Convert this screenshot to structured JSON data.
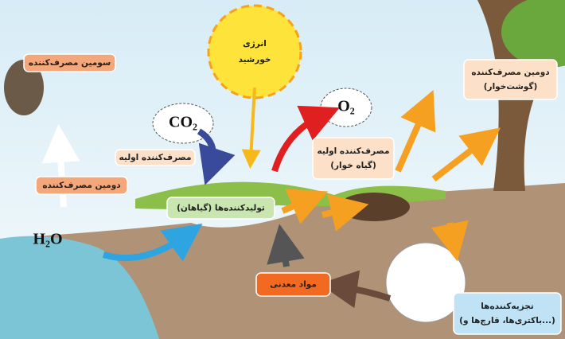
{
  "sun": {
    "lines": [
      "انرژی",
      "خورشید"
    ]
  },
  "molecules": [
    "CO₂",
    "O₂",
    "H₂O"
  ],
  "boxes": [
    {
      "lines": [
        "سومین مصرف‌کننده"
      ]
    },
    {
      "lines": [
        "مصرف‌کننده اولیه"
      ]
    },
    {
      "lines": [
        "دومین مصرف‌کننده"
      ]
    },
    {
      "lines": [
        "تولیدکننده‌ها (گیاهان)"
      ]
    },
    {
      "lines": [
        "مصرف‌کننده اولیه",
        "(گیاه خوار)"
      ]
    },
    {
      "lines": [
        "دومین مصرف‌کننده",
        "(گوشت‌خوار)"
      ]
    },
    {
      "lines": [
        "مواد معدنی"
      ]
    },
    {
      "lines": [
        "تجزیه‌کننده‌ها",
        "(باکتری‌ها، قارچ‌ها و...)"
      ]
    }
  ]
}
